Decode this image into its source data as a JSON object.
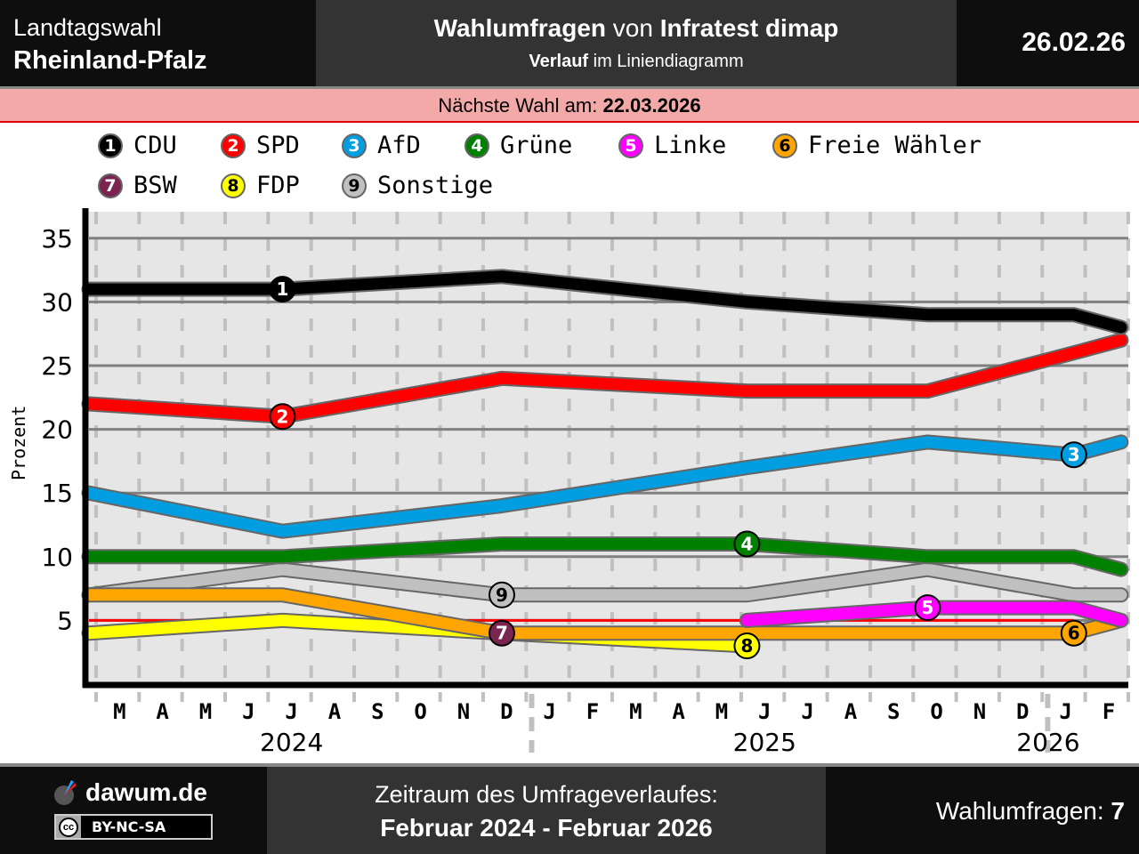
{
  "header": {
    "left_line1": "Landtagswahl",
    "left_line2": "Rheinland-Pfalz",
    "title_bold1": "Wahlumfragen",
    "title_mid": " von ",
    "title_bold2": "Infratest dimap",
    "subtitle_bold": "Verlauf",
    "subtitle_rest": " im Liniendiagramm",
    "date": "26.02.26"
  },
  "next_election": {
    "label": "Nächste Wahl am: ",
    "date": "22.03.2026"
  },
  "colors": {
    "CDU": "#000000",
    "SPD": "#ff0000",
    "AfD": "#009ee0",
    "Grüne": "#008000",
    "Linke": "#ff00ff",
    "Freie Wähler": "#ffa500",
    "BSW": "#7b2450",
    "FDP": "#ffff00",
    "Sonstige": "#c0c0c0",
    "threshold": "#ff0000"
  },
  "legend": [
    {
      "num": "1",
      "name": "CDU",
      "color": "#000000",
      "text_color": "#ffffff"
    },
    {
      "num": "2",
      "name": "SPD",
      "color": "#ff0000",
      "text_color": "#ffffff"
    },
    {
      "num": "3",
      "name": "AfD",
      "color": "#009ee0",
      "text_color": "#ffffff"
    },
    {
      "num": "4",
      "name": "Grüne",
      "color": "#008000",
      "text_color": "#ffffff"
    },
    {
      "num": "5",
      "name": "Linke",
      "color": "#ff00ff",
      "text_color": "#ffffff"
    },
    {
      "num": "6",
      "name": "Freie Wähler",
      "color": "#ffa500",
      "text_color": "#000000"
    },
    {
      "num": "7",
      "name": "BSW",
      "color": "#7b2450",
      "text_color": "#ffffff"
    },
    {
      "num": "8",
      "name": "FDP",
      "color": "#ffff00",
      "text_color": "#000000"
    },
    {
      "num": "9",
      "name": "Sonstige",
      "color": "#c0c0c0",
      "text_color": "#000000"
    }
  ],
  "chart_data": {
    "type": "line",
    "title": "Wahlumfragen von Infratest dimap – Verlauf im Liniendiagramm",
    "xlabel": "",
    "ylabel": "Prozent",
    "ylim": [
      0,
      37
    ],
    "yticks": [
      5,
      10,
      15,
      20,
      25,
      30,
      35
    ],
    "grid": true,
    "threshold": 5,
    "x_month_index": [
      0,
      4.5,
      9.6,
      15.3,
      19.5,
      22.9,
      24
    ],
    "x_poll_labels": [
      "Feb 2024",
      "Jul 2024",
      "Dez 2024",
      "Jun 2025",
      "Okt 2025",
      "Jan 2026",
      "Feb 2026"
    ],
    "month_ticks": [
      "M",
      "A",
      "M",
      "J",
      "J",
      "A",
      "S",
      "O",
      "N",
      "D",
      "J",
      "F",
      "M",
      "A",
      "M",
      "J",
      "J",
      "A",
      "S",
      "O",
      "N",
      "D",
      "J",
      "F"
    ],
    "years": [
      {
        "label": "2024",
        "center_month": 5.0
      },
      {
        "label": "2025",
        "center_month": 16.0
      },
      {
        "label": "2026",
        "center_month": 22.8
      }
    ],
    "year_breaks": [
      10.5,
      22.5
    ],
    "series": [
      {
        "name": "CDU",
        "num": "1",
        "color": "#000000",
        "marker_at": 1,
        "values": [
          31,
          31,
          32,
          30,
          29,
          29,
          28
        ]
      },
      {
        "name": "SPD",
        "num": "2",
        "color": "#ff0000",
        "marker_at": 1,
        "values": [
          22,
          21,
          24,
          23,
          23,
          26,
          27
        ]
      },
      {
        "name": "AfD",
        "num": "3",
        "color": "#009ee0",
        "marker_at": 5,
        "values": [
          15,
          12,
          14,
          17,
          19,
          18,
          19
        ]
      },
      {
        "name": "Grüne",
        "num": "4",
        "color": "#008000",
        "marker_at": 3,
        "values": [
          10,
          10,
          11,
          11,
          10,
          10,
          9
        ]
      },
      {
        "name": "Linke",
        "num": "5",
        "color": "#ff00ff",
        "marker_at": 4,
        "values": [
          null,
          null,
          null,
          5,
          6,
          6,
          5
        ]
      },
      {
        "name": "Freie Wähler",
        "num": "6",
        "color": "#ffa500",
        "marker_at": 5,
        "values": [
          7,
          7,
          4,
          4,
          4,
          4,
          5
        ]
      },
      {
        "name": "BSW",
        "num": "7",
        "color": "#7b2450",
        "marker_at": 2,
        "values": [
          null,
          null,
          4,
          null,
          null,
          null,
          null
        ]
      },
      {
        "name": "FDP",
        "num": "8",
        "color": "#ffff00",
        "marker_at": 3,
        "values": [
          4,
          5,
          4,
          3,
          null,
          null,
          null
        ]
      },
      {
        "name": "Sonstige",
        "num": "9",
        "color": "#c0c0c0",
        "marker_at": 2,
        "values": [
          7,
          9,
          7,
          7,
          9,
          7,
          7
        ]
      }
    ]
  },
  "footer": {
    "brand": "dawum.de",
    "license": "BY-NC-SA",
    "license_icon": "cc",
    "period_label": "Zeitraum des Umfrageverlaufes:",
    "period_value": "Februar 2024 - Februar 2026",
    "count_label": "Wahlumfragen: ",
    "count_value": "7"
  }
}
